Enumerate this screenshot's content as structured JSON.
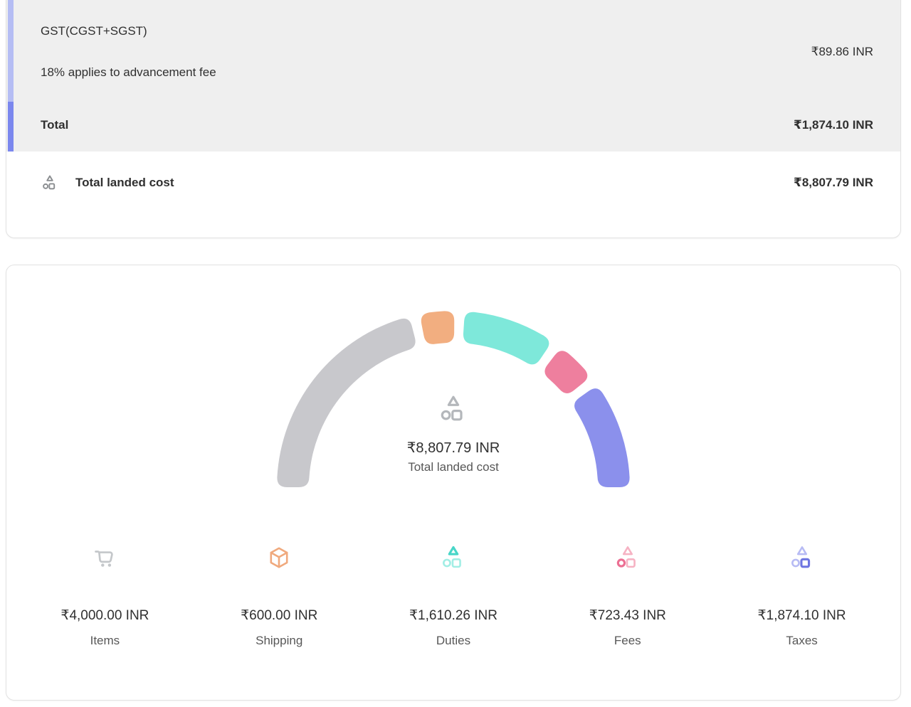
{
  "summary_card": {
    "gst_row": {
      "title": "GST(CGST+SGST)",
      "subtitle": "18% applies to advancement fee",
      "amount": "₹89.86 INR"
    },
    "total_row": {
      "label": "Total",
      "amount": "₹1,874.10 INR"
    },
    "landed_cost_row": {
      "label": "Total landed cost",
      "amount": "₹8,807.79 INR"
    },
    "accent_bar": {
      "top_color": "#b5bdf4",
      "bottom_color": "#7b87ee"
    }
  },
  "chart_card": {
    "center": {
      "amount": "₹8,807.79 INR",
      "label": "Total landed cost"
    },
    "center_icon_color": "#b4b7bb",
    "legend": {
      "items": [
        {
          "label": "Items",
          "amount": "₹4,000.00 INR",
          "icon": "cart-icon",
          "icon_color": "#c4c7ca"
        },
        {
          "label": "Shipping",
          "amount": "₹600.00 INR",
          "icon": "package-icon",
          "icon_color": "#f0a97d"
        },
        {
          "label": "Duties",
          "amount": "₹1,610.26 INR",
          "icon": "shapes-triangle-icon",
          "icon_accent": "#47d6c8",
          "icon_muted": "#a2eee5"
        },
        {
          "label": "Fees",
          "amount": "₹723.43 INR",
          "icon": "shapes-circle-icon",
          "icon_accent": "#ec6f93",
          "icon_muted": "#f6b2c3"
        },
        {
          "label": "Taxes",
          "amount": "₹1,874.10 INR",
          "icon": "shapes-square-icon",
          "icon_accent": "#6f76e1",
          "icon_muted": "#b7bbf4"
        }
      ]
    }
  },
  "chart_data": {
    "type": "gauge",
    "title": "Total landed cost",
    "categories": [
      "Items",
      "Shipping",
      "Duties",
      "Fees",
      "Taxes"
    ],
    "values": [
      4000.0,
      600.0,
      1610.26,
      723.43,
      1874.1
    ],
    "total": 8807.79,
    "currency": "INR",
    "currency_symbol": "₹",
    "colors": [
      "#c8c8cc",
      "#f2ae80",
      "#7ee8da",
      "#ee7f9e",
      "#8b90ec"
    ],
    "arc_degrees": 180,
    "segment_gap_degrees": 3.4,
    "legend_position": "bottom",
    "center_amount": "₹8,807.79 INR",
    "center_label": "Total landed cost"
  }
}
